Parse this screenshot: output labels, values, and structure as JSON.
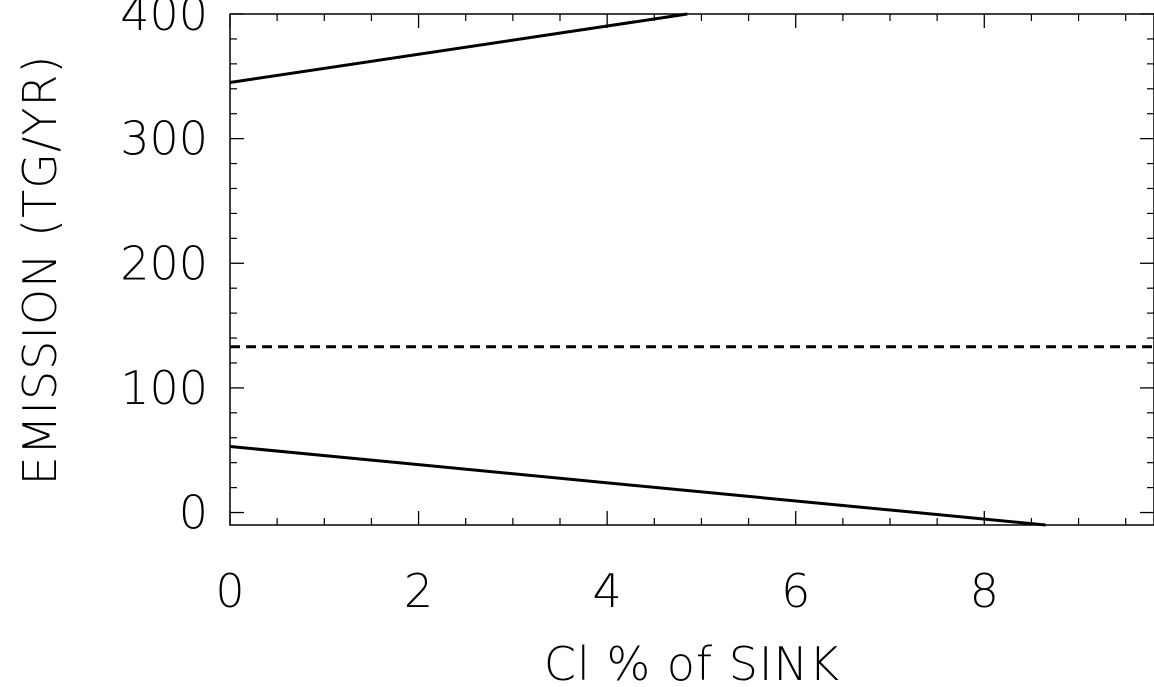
{
  "chart_data": {
    "type": "line",
    "title": "",
    "xlabel": "Cl % of SINK",
    "ylabel": "EMISSION (TG/YR)",
    "xlim": [
      0,
      9.8
    ],
    "ylim": [
      -10,
      400
    ],
    "x_ticks": [
      0,
      2,
      4,
      6,
      8
    ],
    "y_ticks": [
      0,
      100,
      200,
      300,
      400
    ],
    "x_minor_step": 0.5,
    "y_minor_step": 20,
    "grid": false,
    "colors": {
      "axis": "#000000",
      "series": "#000000"
    },
    "series": [
      {
        "style": "solid",
        "x": [
          0,
          4.85
        ],
        "y": [
          345,
          400
        ]
      },
      {
        "style": "dashed",
        "x": [
          0,
          9.8
        ],
        "y": [
          133,
          133
        ]
      },
      {
        "style": "solid",
        "x": [
          0,
          8.65
        ],
        "y": [
          53,
          -10
        ]
      }
    ]
  }
}
